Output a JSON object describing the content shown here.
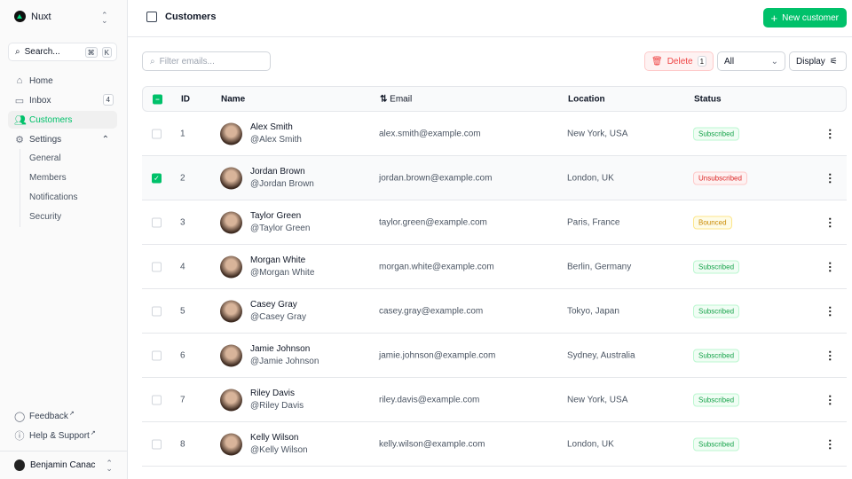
{
  "sidebar": {
    "brand": "Nuxt",
    "search_placeholder": "Search...",
    "kbd": [
      "⌘",
      "K"
    ],
    "items": [
      {
        "label": "Home",
        "icon": "home-icon"
      },
      {
        "label": "Inbox",
        "icon": "inbox-icon",
        "badge": "4"
      },
      {
        "label": "Customers",
        "icon": "users-icon",
        "active": true
      },
      {
        "label": "Settings",
        "icon": "gear-icon"
      }
    ],
    "settings_sub": [
      "General",
      "Members",
      "Notifications",
      "Security"
    ],
    "footer": [
      {
        "label": "Feedback",
        "icon": "chat-icon"
      },
      {
        "label": "Help & Support",
        "icon": "info-icon"
      }
    ],
    "user": "Benjamin Canac"
  },
  "header": {
    "title": "Customers",
    "new_button": "New customer"
  },
  "toolbar": {
    "filter_placeholder": "Filter emails...",
    "delete_label": "Delete",
    "delete_count": "1",
    "status_select": "All",
    "display_label": "Display"
  },
  "table": {
    "columns": [
      "ID",
      "Name",
      "Email",
      "Location",
      "Status"
    ],
    "rows": [
      {
        "id": "1",
        "name": "Alex Smith",
        "handle": "@Alex Smith",
        "email": "alex.smith@example.com",
        "location": "New York, USA",
        "status": "Subscribed",
        "checked": false
      },
      {
        "id": "2",
        "name": "Jordan Brown",
        "handle": "@Jordan Brown",
        "email": "jordan.brown@example.com",
        "location": "London, UK",
        "status": "Unsubscribed",
        "checked": true
      },
      {
        "id": "3",
        "name": "Taylor Green",
        "handle": "@Taylor Green",
        "email": "taylor.green@example.com",
        "location": "Paris, France",
        "status": "Bounced",
        "checked": false
      },
      {
        "id": "4",
        "name": "Morgan White",
        "handle": "@Morgan White",
        "email": "morgan.white@example.com",
        "location": "Berlin, Germany",
        "status": "Subscribed",
        "checked": false
      },
      {
        "id": "5",
        "name": "Casey Gray",
        "handle": "@Casey Gray",
        "email": "casey.gray@example.com",
        "location": "Tokyo, Japan",
        "status": "Subscribed",
        "checked": false
      },
      {
        "id": "6",
        "name": "Jamie Johnson",
        "handle": "@Jamie Johnson",
        "email": "jamie.johnson@example.com",
        "location": "Sydney, Australia",
        "status": "Subscribed",
        "checked": false
      },
      {
        "id": "7",
        "name": "Riley Davis",
        "handle": "@Riley Davis",
        "email": "riley.davis@example.com",
        "location": "New York, USA",
        "status": "Subscribed",
        "checked": false
      },
      {
        "id": "8",
        "name": "Kelly Wilson",
        "handle": "@Kelly Wilson",
        "email": "kelly.wilson@example.com",
        "location": "London, UK",
        "status": "Subscribed",
        "checked": false
      }
    ]
  },
  "colors": {
    "accent": "#00c16a",
    "danger": "#ef4444",
    "warning": "#ca8a04"
  }
}
